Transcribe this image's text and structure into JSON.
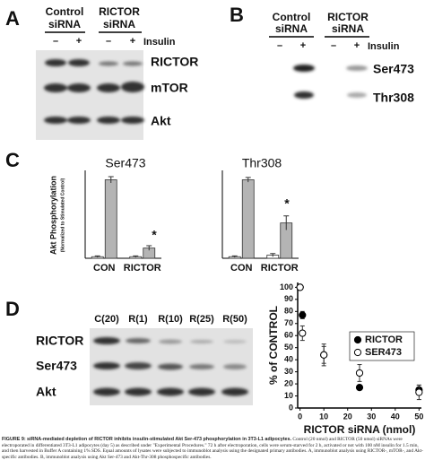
{
  "panel_a": {
    "label": "A",
    "groups": [
      [
        "Control",
        "siRNA"
      ],
      [
        "RICTOR",
        "siRNA"
      ]
    ],
    "signs": [
      "–",
      "+",
      "–",
      "+"
    ],
    "treatment": "Insulin",
    "rows": [
      "RICTOR",
      "mTOR",
      "Akt"
    ]
  },
  "panel_b": {
    "label": "B",
    "groups": [
      [
        "Control",
        "siRNA"
      ],
      [
        "RICTOR",
        "siRNA"
      ]
    ],
    "signs": [
      "–",
      "+",
      "–",
      "+"
    ],
    "treatment": "Insulin",
    "rows": [
      "Ser473",
      "Thr308"
    ]
  },
  "panel_c": {
    "label": "C"
  },
  "panel_d": {
    "label": "D",
    "lanes": [
      "C(20)",
      "R(1)",
      "R(10)",
      "R(25)",
      "R(50)"
    ],
    "rows": [
      "RICTOR",
      "Ser473",
      "Akt"
    ]
  },
  "chart_data": [
    {
      "type": "bar",
      "title": "Ser473",
      "ylabel": "Akt Phosphorylation",
      "ylabel_note": "(Normalized to Stimulated Control)",
      "categories": [
        "CON",
        "RICTOR"
      ],
      "ylim": [
        0,
        112
      ],
      "series": [
        {
          "color": "#ffffff",
          "values": [
            2,
            2
          ],
          "errors": [
            1,
            1
          ]
        },
        {
          "color": "#b4b4b4",
          "values": [
            100,
            13
          ],
          "errors": [
            4,
            3
          ]
        }
      ],
      "annotation": "*"
    },
    {
      "type": "bar",
      "title": "Thr308",
      "categories": [
        "CON",
        "RICTOR"
      ],
      "ylim": [
        0,
        112
      ],
      "series": [
        {
          "color": "#ffffff",
          "values": [
            2,
            4
          ],
          "errors": [
            1,
            2
          ]
        },
        {
          "color": "#b4b4b4",
          "values": [
            100,
            45
          ],
          "errors": [
            3,
            9
          ]
        }
      ],
      "annotation": "*"
    },
    {
      "type": "scatter",
      "xlabel": "RICTOR siRNA (nmol)",
      "ylabel": "% of CONTROL",
      "xlim": [
        -1,
        51
      ],
      "ylim": [
        0,
        104
      ],
      "xticks": [
        0,
        10,
        20,
        30,
        40,
        50
      ],
      "yticks": [
        0,
        10,
        20,
        30,
        40,
        50,
        60,
        70,
        80,
        90,
        100
      ],
      "legend": "right",
      "series": [
        {
          "name": "RICTOR",
          "color": "#000000",
          "x": [
            0,
            1,
            10,
            25,
            50
          ],
          "values": [
            100,
            77,
            44,
            17,
            15
          ],
          "errors": [
            0,
            3,
            7,
            2,
            4
          ]
        },
        {
          "name": "SER473",
          "color": "#ffffff",
          "x": [
            0,
            1,
            10,
            25,
            50
          ],
          "values": [
            100,
            62,
            44,
            29,
            13
          ],
          "errors": [
            0,
            6,
            9,
            7,
            6
          ]
        }
      ]
    }
  ],
  "caption": {
    "label": "FIGURE 9:",
    "title": "siRNA-mediated depletion of RICTOR inhibits insulin-stimulated Akt Ser-473 phosphorylation in 3T3-L1 adipocytes.",
    "text": "Control (20 nmol) and RICTOR (50 nmol) siRNAs were electroporated in differentiated 3T3-L1 adipocytes (day 5) as described under \"Experimental Procedures.\" 72 h after electroporation, cells were serum-starved for 2 h, activated or not with 100 nM insulin for 1.5 min, and then harvested in Buffer A containing 1% SDS. Equal amounts of lysates were subjected to immunoblot analysis using the designated primary antibodies. A, immunoblot analysis using RICTOR-, mTOR-, and Akt-specific antibodies. B, immunoblot analysis using Akt Ser-473 and Akt-Thr-308 phosphospecific antibodies."
  }
}
